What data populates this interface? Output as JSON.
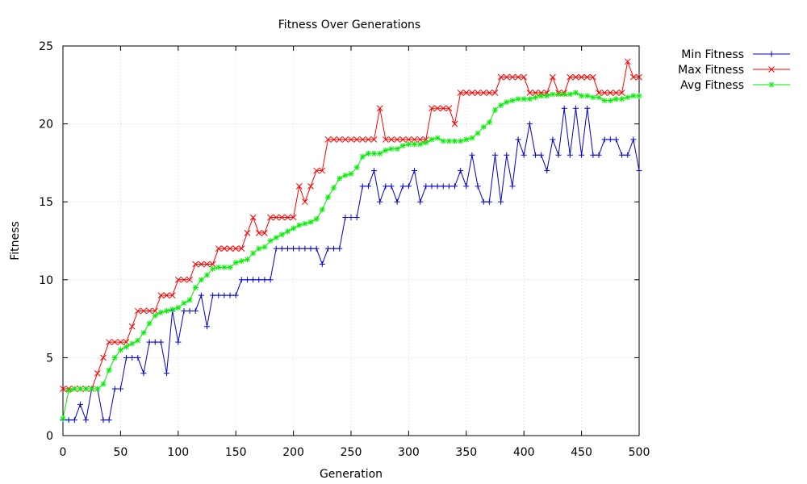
{
  "chart_data": {
    "type": "line",
    "title": "Fitness Over Generations",
    "xlabel": "Generation",
    "ylabel": "Fitness",
    "xlim": [
      0,
      500
    ],
    "ylim": [
      0,
      25
    ],
    "xticks": [
      "0",
      "50",
      "100",
      "150",
      "200",
      "250",
      "300",
      "350",
      "400",
      "450",
      "500"
    ],
    "yticks": [
      "0",
      "5",
      "10",
      "15",
      "20",
      "25"
    ],
    "grid": true,
    "legend_position": "top-right-outside",
    "x": [
      0,
      5,
      10,
      15,
      20,
      25,
      30,
      35,
      40,
      45,
      50,
      55,
      60,
      65,
      70,
      75,
      80,
      85,
      90,
      95,
      100,
      105,
      110,
      115,
      120,
      125,
      130,
      135,
      140,
      145,
      150,
      155,
      160,
      165,
      170,
      175,
      180,
      185,
      190,
      195,
      200,
      205,
      210,
      215,
      220,
      225,
      230,
      235,
      240,
      245,
      250,
      255,
      260,
      265,
      270,
      275,
      280,
      285,
      290,
      295,
      300,
      305,
      310,
      315,
      320,
      325,
      330,
      335,
      340,
      345,
      350,
      355,
      360,
      365,
      370,
      375,
      380,
      385,
      390,
      395,
      400,
      405,
      410,
      415,
      420,
      425,
      430,
      435,
      440,
      445,
      450,
      455,
      460,
      465,
      470,
      475,
      480,
      485,
      490,
      495,
      500
    ],
    "series": [
      {
        "name": "Min Fitness",
        "color": "#0000cc",
        "marker": "plus",
        "values": [
          1,
          1,
          1,
          2,
          1,
          3,
          3,
          1,
          1,
          3,
          3,
          5,
          5,
          5,
          4,
          6,
          6,
          6,
          4,
          8,
          6,
          8,
          8,
          8,
          9,
          7,
          9,
          9,
          9,
          9,
          9,
          10,
          10,
          10,
          10,
          10,
          10,
          12,
          12,
          12,
          12,
          12,
          12,
          12,
          12,
          11,
          12,
          12,
          12,
          14,
          14,
          14,
          16,
          16,
          17,
          15,
          16,
          16,
          15,
          16,
          16,
          17,
          15,
          16,
          16,
          16,
          16,
          16,
          16,
          17,
          16,
          18,
          16,
          15,
          15,
          18,
          15,
          18,
          16,
          19,
          18,
          20,
          18,
          18,
          17,
          19,
          18,
          21,
          18,
          21,
          18,
          21,
          18,
          18,
          19,
          19,
          19,
          18,
          18,
          19,
          17
        ]
      },
      {
        "name": "Max Fitness",
        "color": "#ff0000",
        "marker": "cross",
        "values": [
          3,
          3,
          3,
          3,
          3,
          3,
          4,
          5,
          6,
          6,
          6,
          6,
          7,
          8,
          8,
          8,
          8,
          9,
          9,
          9,
          10,
          10,
          10,
          11,
          11,
          11,
          11,
          12,
          12,
          12,
          12,
          12,
          13,
          14,
          13,
          13,
          14,
          14,
          14,
          14,
          14,
          16,
          15,
          16,
          17,
          17,
          19,
          19,
          19,
          19,
          19,
          19,
          19,
          19,
          19,
          21,
          19,
          19,
          19,
          19,
          19,
          19,
          19,
          19,
          21,
          21,
          21,
          21,
          20,
          22,
          22,
          22,
          22,
          22,
          22,
          22,
          23,
          23,
          23,
          23,
          23,
          22,
          22,
          22,
          22,
          23,
          22,
          22,
          23,
          23,
          23,
          23,
          23,
          22,
          22,
          22,
          22,
          22,
          24,
          23,
          23
        ]
      },
      {
        "name": "Avg Fitness",
        "color": "#00ee00",
        "marker": "star",
        "values": [
          1.1,
          2.9,
          3.0,
          3.0,
          3.0,
          3.0,
          3.0,
          3.3,
          4.2,
          5.0,
          5.5,
          5.7,
          5.9,
          6.1,
          6.6,
          7.2,
          7.7,
          7.9,
          8.0,
          8.1,
          8.2,
          8.5,
          8.7,
          9.5,
          10.0,
          10.3,
          10.7,
          10.8,
          10.8,
          10.8,
          11.1,
          11.2,
          11.3,
          11.7,
          12.0,
          12.1,
          12.5,
          12.7,
          12.9,
          13.1,
          13.3,
          13.5,
          13.6,
          13.7,
          13.9,
          14.5,
          15.3,
          15.9,
          16.5,
          16.7,
          16.8,
          17.2,
          17.9,
          18.1,
          18.1,
          18.1,
          18.3,
          18.4,
          18.4,
          18.6,
          18.7,
          18.7,
          18.7,
          18.8,
          19.0,
          19.1,
          18.9,
          18.9,
          18.9,
          18.9,
          19.0,
          19.1,
          19.4,
          19.8,
          20.1,
          20.9,
          21.2,
          21.4,
          21.5,
          21.6,
          21.6,
          21.6,
          21.7,
          21.8,
          21.8,
          21.9,
          21.9,
          21.9,
          21.9,
          22.0,
          21.8,
          21.8,
          21.7,
          21.7,
          21.5,
          21.5,
          21.6,
          21.6,
          21.7,
          21.8,
          21.8
        ]
      }
    ]
  }
}
